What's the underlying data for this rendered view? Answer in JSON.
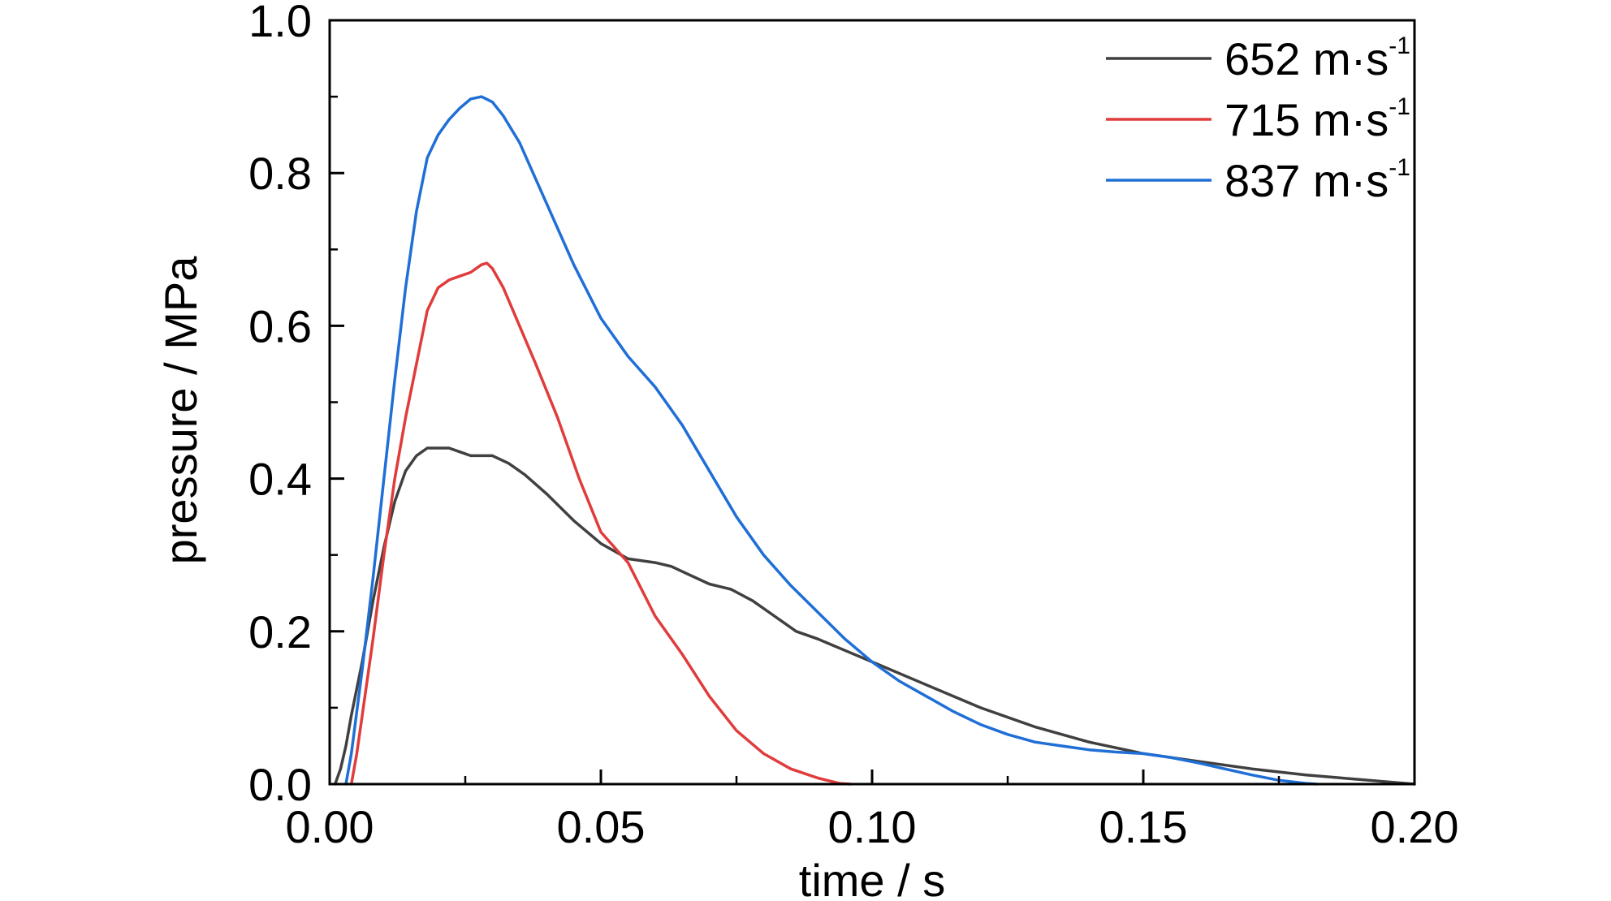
{
  "chart_data": {
    "type": "line",
    "title": "",
    "xlabel": "time / s",
    "ylabel": "pressure / MPa",
    "xlim": [
      0.0,
      0.2
    ],
    "ylim": [
      0.0,
      1.0
    ],
    "xticks": [
      "0.00",
      "0.05",
      "0.10",
      "0.15",
      "0.20"
    ],
    "yticks": [
      "0.0",
      "0.2",
      "0.4",
      "0.6",
      "0.8",
      "1.0"
    ],
    "grid": false,
    "legend_position": "top-right",
    "series": [
      {
        "name": "652 m·s",
        "name_sup": "-1",
        "color": "#404040",
        "x": [
          0.001,
          0.002,
          0.003,
          0.004,
          0.006,
          0.008,
          0.01,
          0.012,
          0.014,
          0.016,
          0.018,
          0.02,
          0.022,
          0.024,
          0.026,
          0.028,
          0.03,
          0.033,
          0.036,
          0.04,
          0.045,
          0.05,
          0.055,
          0.06,
          0.063,
          0.066,
          0.07,
          0.074,
          0.078,
          0.082,
          0.086,
          0.09,
          0.095,
          0.1,
          0.11,
          0.12,
          0.13,
          0.14,
          0.15,
          0.16,
          0.17,
          0.18,
          0.19,
          0.2
        ],
        "y": [
          0.0,
          0.02,
          0.05,
          0.09,
          0.16,
          0.24,
          0.31,
          0.37,
          0.41,
          0.43,
          0.44,
          0.44,
          0.44,
          0.435,
          0.43,
          0.43,
          0.43,
          0.42,
          0.405,
          0.38,
          0.345,
          0.315,
          0.295,
          0.29,
          0.285,
          0.275,
          0.262,
          0.255,
          0.24,
          0.22,
          0.2,
          0.19,
          0.175,
          0.16,
          0.13,
          0.1,
          0.075,
          0.055,
          0.04,
          0.03,
          0.02,
          0.012,
          0.006,
          0.0
        ]
      },
      {
        "name": "715 m·s",
        "name_sup": "-1",
        "color": "#e03c3c",
        "x": [
          0.004,
          0.005,
          0.006,
          0.008,
          0.01,
          0.012,
          0.014,
          0.016,
          0.018,
          0.02,
          0.022,
          0.024,
          0.026,
          0.028,
          0.029,
          0.03,
          0.032,
          0.035,
          0.038,
          0.042,
          0.046,
          0.05,
          0.055,
          0.06,
          0.065,
          0.07,
          0.075,
          0.08,
          0.085,
          0.09,
          0.094,
          0.096
        ],
        "y": [
          0.0,
          0.04,
          0.09,
          0.19,
          0.3,
          0.4,
          0.48,
          0.55,
          0.62,
          0.65,
          0.66,
          0.665,
          0.67,
          0.68,
          0.682,
          0.675,
          0.65,
          0.6,
          0.55,
          0.48,
          0.4,
          0.33,
          0.29,
          0.22,
          0.17,
          0.115,
          0.07,
          0.04,
          0.02,
          0.008,
          0.001,
          0.0
        ]
      },
      {
        "name": "837 m·s",
        "name_sup": "-1",
        "color": "#1f6fd6",
        "x": [
          0.003,
          0.004,
          0.006,
          0.008,
          0.01,
          0.012,
          0.014,
          0.016,
          0.018,
          0.02,
          0.022,
          0.024,
          0.026,
          0.028,
          0.03,
          0.032,
          0.035,
          0.04,
          0.045,
          0.05,
          0.055,
          0.06,
          0.065,
          0.07,
          0.075,
          0.08,
          0.085,
          0.09,
          0.095,
          0.1,
          0.105,
          0.11,
          0.115,
          0.12,
          0.125,
          0.13,
          0.135,
          0.14,
          0.145,
          0.15,
          0.155,
          0.16,
          0.165,
          0.17,
          0.175,
          0.18,
          0.182
        ],
        "y": [
          0.0,
          0.04,
          0.15,
          0.27,
          0.4,
          0.53,
          0.65,
          0.75,
          0.82,
          0.85,
          0.87,
          0.885,
          0.897,
          0.9,
          0.893,
          0.875,
          0.84,
          0.76,
          0.68,
          0.61,
          0.56,
          0.52,
          0.47,
          0.41,
          0.35,
          0.3,
          0.26,
          0.225,
          0.19,
          0.16,
          0.135,
          0.115,
          0.095,
          0.078,
          0.065,
          0.055,
          0.05,
          0.045,
          0.042,
          0.04,
          0.035,
          0.028,
          0.02,
          0.012,
          0.005,
          0.001,
          0.0
        ]
      }
    ]
  }
}
